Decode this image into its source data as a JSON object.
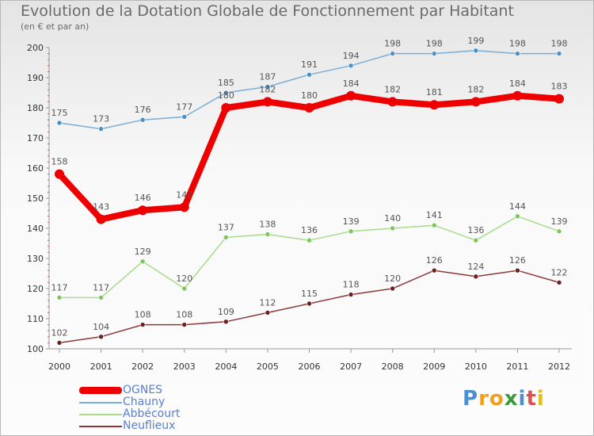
{
  "chart_data": {
    "type": "line",
    "title": "Evolution de la Dotation Globale de Fonctionnement par Habitant",
    "subtitle": "(en € et par an)",
    "xlabel": "",
    "ylabel": "",
    "x": [
      "2000",
      "2001",
      "2002",
      "2003",
      "2004",
      "2005",
      "2006",
      "2007",
      "2008",
      "2009",
      "2010",
      "2011",
      "2012"
    ],
    "ylim": [
      100,
      200
    ],
    "yticks": [
      100,
      110,
      120,
      130,
      140,
      150,
      160,
      170,
      180,
      190,
      200
    ],
    "grid": false,
    "legend_position": "bottom-left",
    "series": [
      {
        "name": "Chauny",
        "color": "#4a8fc7",
        "line_color": "#7aaed6",
        "width": "thin",
        "values": [
          175,
          173,
          176,
          177,
          185,
          187,
          191,
          194,
          198,
          198,
          199,
          198,
          198
        ]
      },
      {
        "name": "Abbécourt",
        "color": "#7cc65a",
        "line_color": "#a6dc8a",
        "width": "thin",
        "values": [
          117,
          117,
          129,
          120,
          137,
          138,
          136,
          139,
          140,
          141,
          136,
          144,
          139
        ]
      },
      {
        "name": "Neuflieux",
        "color": "#6b1f1f",
        "line_color": "#8a3a3a",
        "width": "thin",
        "values": [
          102,
          104,
          108,
          108,
          109,
          112,
          115,
          118,
          120,
          126,
          124,
          126,
          122
        ]
      },
      {
        "name": "OGNES",
        "color": "#ee0000",
        "line_color": "#ee0000",
        "width": "thick",
        "values": [
          158,
          143,
          146,
          147,
          180,
          182,
          180,
          184,
          182,
          181,
          182,
          184,
          183
        ]
      }
    ],
    "legend_order": [
      "OGNES",
      "Chauny",
      "Abbécourt",
      "Neuflieux"
    ]
  },
  "logo": {
    "letters": [
      "P",
      "r",
      "o",
      "x",
      "i",
      "t",
      "i"
    ],
    "colors": [
      "#4a90d0",
      "#f0a020",
      "#f0a020",
      "#3a9a3a",
      "#4a90d0",
      "#e05050",
      "#e0c020"
    ]
  }
}
